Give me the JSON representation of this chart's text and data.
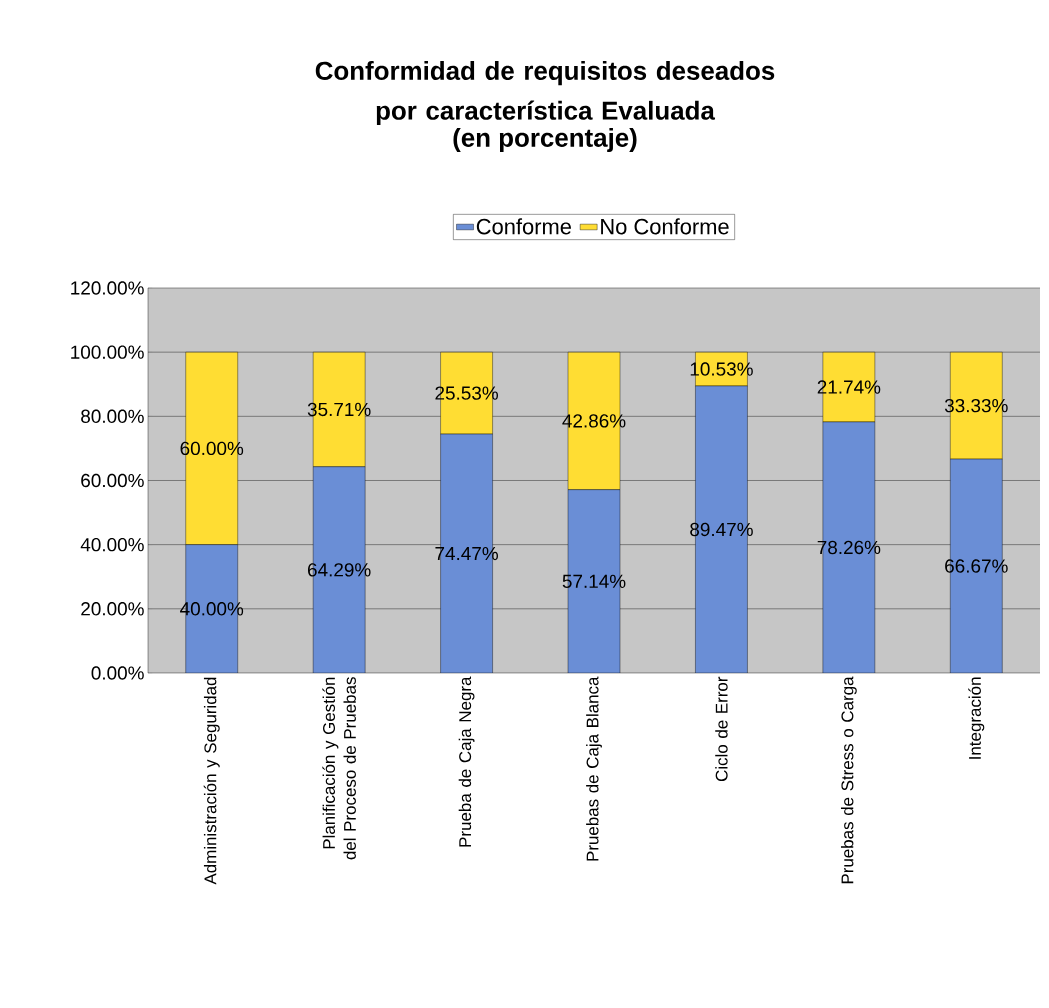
{
  "chart_data": {
    "type": "bar",
    "stacked": true,
    "title": "Conformidad de requisitos deseados por característica Evaluada",
    "subtitle": "(en porcentaje)",
    "categories": [
      "Administración y Seguridad",
      "Planificación y Gestión del Proceso de Pruebas",
      "Prueba de Caja Negra",
      "Pruebas de Caja Blanca",
      "Ciclo de Error",
      "Pruebas de Stress o Carga",
      "Integración"
    ],
    "series": [
      {
        "name": "Conforme",
        "color": "#6a8ed6",
        "values": [
          40.0,
          64.29,
          74.47,
          57.14,
          89.47,
          78.26,
          66.67
        ],
        "value_labels": [
          "40.00%",
          "64.29%",
          "74.47%",
          "57.14%",
          "89.47%",
          "78.26%",
          "66.67%"
        ]
      },
      {
        "name": "No Conforme",
        "color": "#ffdd33",
        "values": [
          60.0,
          35.71,
          25.53,
          42.86,
          10.53,
          21.74,
          33.33
        ],
        "value_labels": [
          "60.00%",
          "35.71%",
          "25.53%",
          "42.86%",
          "10.53%",
          "21.74%",
          "33.33%"
        ]
      }
    ],
    "ylim": [
      0,
      120
    ],
    "yticks": [
      {
        "value": 0,
        "label": "0.00%"
      },
      {
        "value": 20,
        "label": "20.00%"
      },
      {
        "value": 40,
        "label": "40.00%"
      },
      {
        "value": 60,
        "label": "60.00%"
      },
      {
        "value": 80,
        "label": "80.00%"
      },
      {
        "value": 100,
        "label": "100.00%"
      },
      {
        "value": 120,
        "label": "120.00%"
      }
    ],
    "grid": "y",
    "legend": "top"
  }
}
